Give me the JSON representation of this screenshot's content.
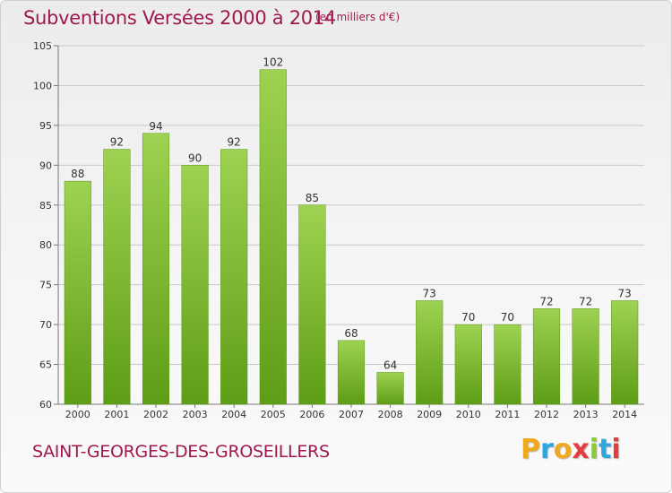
{
  "chart_data": {
    "type": "bar",
    "title": "Subventions Versées 2000 à 2014",
    "subtitle": "(en milliers d'€)",
    "categories": [
      "2000",
      "2001",
      "2002",
      "2003",
      "2004",
      "2005",
      "2006",
      "2007",
      "2008",
      "2009",
      "2010",
      "2011",
      "2012",
      "2013",
      "2014"
    ],
    "values": [
      88,
      92,
      94,
      90,
      92,
      102,
      85,
      68,
      64,
      73,
      70,
      70,
      72,
      72,
      73
    ],
    "ylim": [
      60,
      105
    ],
    "yticks": [
      60,
      65,
      70,
      75,
      80,
      85,
      90,
      95,
      100,
      105
    ],
    "grid": true,
    "bar_color": "#7dbd2e",
    "xlabel": "",
    "ylabel": ""
  },
  "commune": "SAINT-GEORGES-DES-GROSEILLERS",
  "logo": {
    "text": "Proxiti",
    "colors": [
      "#f0a81c",
      "#2fa6de",
      "#e23e3e",
      "#8dc63f"
    ]
  }
}
